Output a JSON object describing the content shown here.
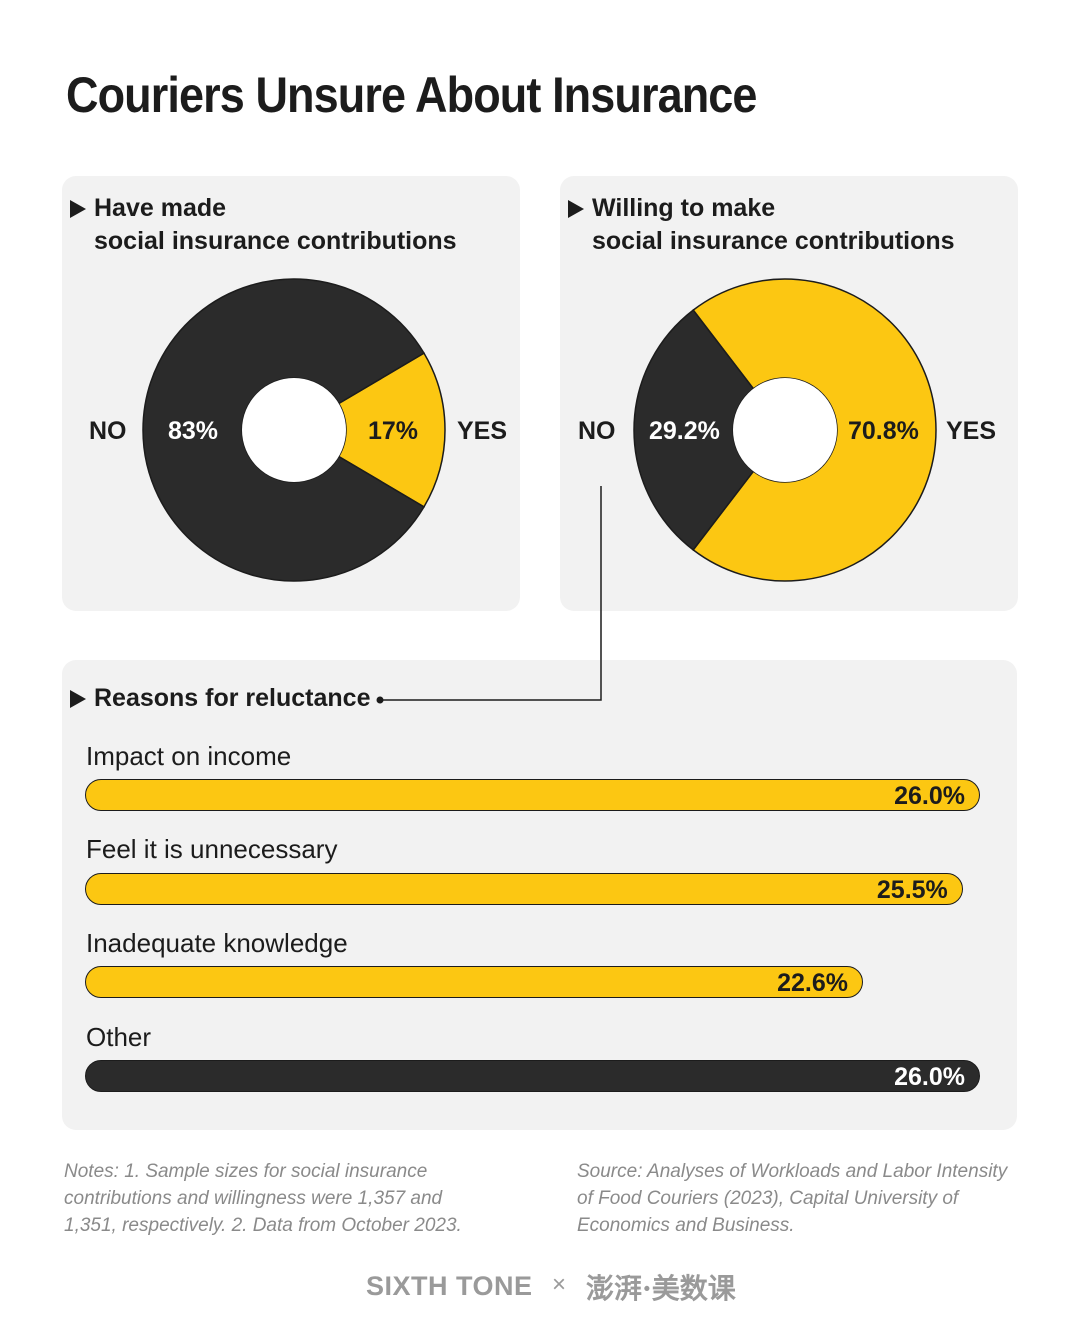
{
  "title": "Couriers Unsure About Insurance",
  "colors": {
    "yellow": "#fcc712",
    "dark": "#2b2b2b",
    "panel": "#f2f2f2"
  },
  "chart_data": [
    {
      "type": "pie",
      "title_line1": "Have made",
      "title_line2": "social insurance contributions",
      "slices": [
        {
          "label": "NO",
          "value": 83,
          "display": "83%",
          "color": "#2b2b2b"
        },
        {
          "label": "YES",
          "value": 17,
          "display": "17%",
          "color": "#fcc712"
        }
      ]
    },
    {
      "type": "pie",
      "title_line1": "Willing to make",
      "title_line2": "social insurance contributions",
      "slices": [
        {
          "label": "NO",
          "value": 29.2,
          "display": "29.2%",
          "color": "#2b2b2b"
        },
        {
          "label": "YES",
          "value": 70.8,
          "display": "70.8%",
          "color": "#fcc712"
        }
      ]
    },
    {
      "type": "bar",
      "title": "Reasons for reluctance",
      "categories": [
        "Impact on income",
        "Feel it is unnecessary",
        "Inadequate knowledge",
        "Other"
      ],
      "values": [
        26.0,
        25.5,
        22.6,
        26.0
      ],
      "display": [
        "26.0%",
        "25.5%",
        "22.6%",
        "26.0%"
      ],
      "colors": [
        "#fcc712",
        "#fcc712",
        "#fcc712",
        "#2b2b2b"
      ]
    }
  ],
  "notes": {
    "left": [
      "Notes: 1. Sample sizes for social insurance",
      "contributions and willingness were 1,357 and",
      "1,351, respectively. 2. Data from October 2023."
    ],
    "right": [
      "Source: Analyses of Workloads and Labor Intensity",
      "of Food Couriers (2023), Capital University of",
      "Economics and Business."
    ]
  },
  "footer": {
    "brand1": "SIXTH TONE",
    "separator": "×",
    "brand2": "澎湃·美数课"
  }
}
